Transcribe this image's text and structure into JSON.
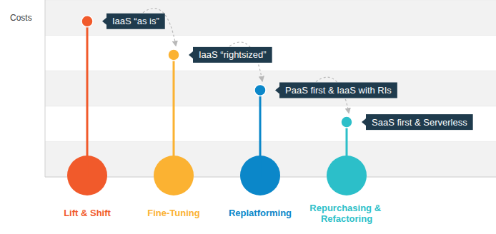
{
  "chart_data": {
    "type": "lollipop",
    "y_label": "Costs",
    "categories": [
      "Lift & Shift",
      "Fine-Tuning",
      "Replatforming",
      "Repurchasing & Refactoring"
    ],
    "values": [
      88,
      69,
      49,
      31
    ],
    "annotations": [
      "IaaS “as is”",
      "IaaS “rightsized”",
      "PaaS first & IaaS with RIs",
      "SaaS first & Serverless"
    ],
    "colors": [
      "#f15a2b",
      "#fbb232",
      "#0b87c9",
      "#2cbfc9"
    ],
    "ylim": [
      0,
      100
    ],
    "yticks": [
      0,
      20,
      40,
      60,
      80,
      100
    ],
    "tick_labels": false,
    "grid": true
  }
}
